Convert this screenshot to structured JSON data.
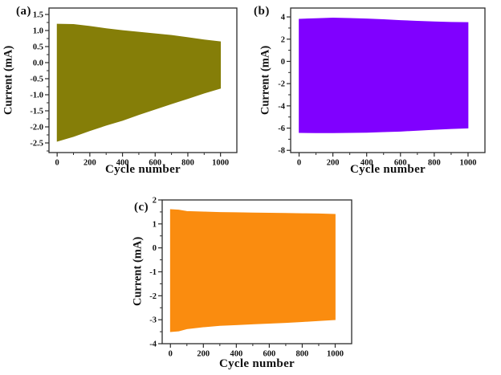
{
  "figure": {
    "background": "#ffffff",
    "frame_color": "#2b2b2b",
    "text_color": "#111111"
  },
  "chart_data": [
    {
      "panel": "(a)",
      "type": "area",
      "title": "",
      "xlabel": "Cycle number",
      "ylabel": "Current (mA)",
      "color": "#857E08",
      "xlim": [
        -50,
        1100
      ],
      "ylim": [
        -2.8,
        1.7
      ],
      "xtick_labels": [
        "0",
        "200",
        "400",
        "600",
        "800",
        "1000"
      ],
      "ytick_labels": [
        "1.5",
        "1.0",
        "0.5",
        "0.0",
        "-0.5",
        "-1.0",
        "-1.5",
        "-2.0",
        "-2.5"
      ],
      "x": [
        0,
        100,
        200,
        300,
        400,
        500,
        600,
        700,
        800,
        900,
        1000
      ],
      "series": [
        {
          "name": "upper_envelope",
          "values": [
            1.2,
            1.19,
            1.13,
            1.06,
            1.0,
            0.95,
            0.9,
            0.85,
            0.78,
            0.71,
            0.65
          ]
        },
        {
          "name": "lower_envelope",
          "values": [
            -2.45,
            -2.3,
            -2.12,
            -1.95,
            -1.8,
            -1.62,
            -1.45,
            -1.28,
            -1.12,
            -0.95,
            -0.8
          ]
        }
      ],
      "legend": null,
      "grid": false
    },
    {
      "panel": "(b)",
      "type": "area",
      "title": "",
      "xlabel": "Cycle number",
      "ylabel": "Current (mA)",
      "color": "#8000FF",
      "xlim": [
        -50,
        1100
      ],
      "ylim": [
        -8.2,
        4.8
      ],
      "xtick_labels": [
        "0",
        "200",
        "400",
        "600",
        "800",
        "1000"
      ],
      "ytick_labels": [
        "4",
        "2",
        "0",
        "-2",
        "-4",
        "-6",
        "-8"
      ],
      "x": [
        0,
        100,
        200,
        300,
        400,
        500,
        600,
        700,
        800,
        900,
        1000
      ],
      "series": [
        {
          "name": "upper_envelope",
          "values": [
            3.8,
            3.85,
            3.9,
            3.87,
            3.82,
            3.76,
            3.68,
            3.62,
            3.56,
            3.52,
            3.5
          ]
        },
        {
          "name": "lower_envelope",
          "values": [
            -6.4,
            -6.42,
            -6.42,
            -6.4,
            -6.38,
            -6.33,
            -6.28,
            -6.2,
            -6.12,
            -6.05,
            -6.0
          ]
        }
      ],
      "legend": null,
      "grid": false
    },
    {
      "panel": "(c)",
      "type": "area",
      "title": "",
      "xlabel": "Cycle number",
      "ylabel": "Current (mA)",
      "color": "#FA8C0F",
      "xlim": [
        -50,
        1100
      ],
      "ylim": [
        -4,
        2
      ],
      "xtick_labels": [
        "0",
        "200",
        "400",
        "600",
        "800",
        "1000"
      ],
      "ytick_labels": [
        "2",
        "1",
        "0",
        "-1",
        "-2",
        "-3",
        "-4"
      ],
      "x": [
        0,
        50,
        100,
        200,
        300,
        400,
        500,
        600,
        700,
        800,
        900,
        1000
      ],
      "series": [
        {
          "name": "upper_envelope",
          "values": [
            1.6,
            1.58,
            1.52,
            1.5,
            1.48,
            1.47,
            1.46,
            1.45,
            1.44,
            1.43,
            1.42,
            1.4
          ]
        },
        {
          "name": "lower_envelope",
          "values": [
            -3.5,
            -3.47,
            -3.38,
            -3.3,
            -3.24,
            -3.21,
            -3.18,
            -3.15,
            -3.12,
            -3.08,
            -3.04,
            -3.0
          ]
        }
      ],
      "legend": null,
      "grid": false
    }
  ]
}
